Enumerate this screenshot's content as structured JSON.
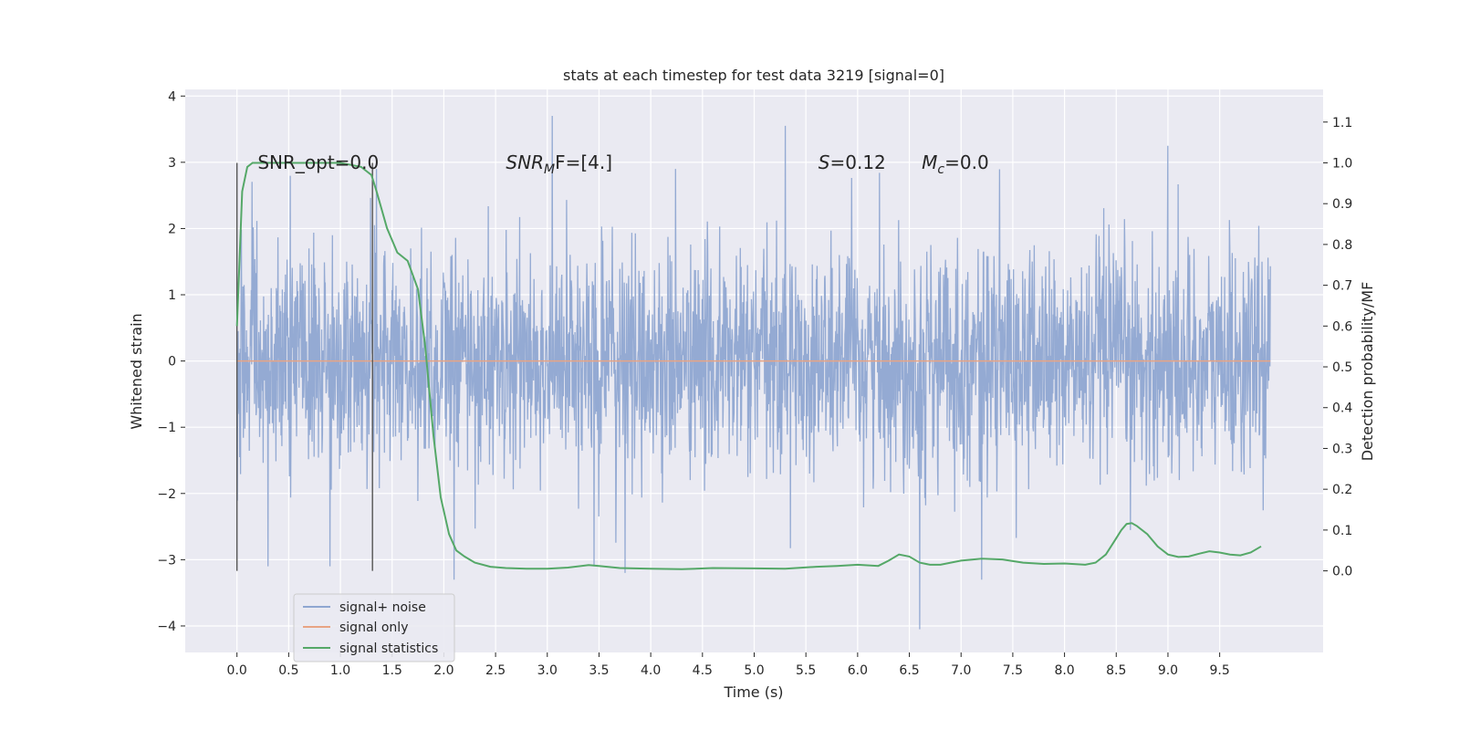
{
  "chart_data": {
    "type": "line",
    "title": "stats at each timestep for test data 3219 [signal=0]",
    "xlabel": "Time (s)",
    "ylabel": "Whitened strain",
    "y2label": "Detection probability/MF",
    "xlim": [
      -0.5,
      10.5
    ],
    "ylim": [
      -4.4,
      4.1
    ],
    "y2lim": [
      -0.2,
      1.18
    ],
    "x_ticks": [
      0.0,
      0.5,
      1.0,
      1.5,
      2.0,
      2.5,
      3.0,
      3.5,
      4.0,
      4.5,
      5.0,
      5.5,
      6.0,
      6.5,
      7.0,
      7.5,
      8.0,
      8.5,
      9.0,
      9.5
    ],
    "x_tick_labels": [
      "0.0",
      "0.5",
      "1.0",
      "1.5",
      "2.0",
      "2.5",
      "3.0",
      "3.5",
      "4.0",
      "4.5",
      "5.0",
      "5.5",
      "6.0",
      "6.5",
      "7.0",
      "7.5",
      "8.0",
      "8.5",
      "9.0",
      "9.5"
    ],
    "y_ticks": [
      -4,
      -3,
      -2,
      -1,
      0,
      1,
      2,
      3,
      4
    ],
    "y_tick_labels": [
      "−4",
      "−3",
      "−2",
      "−1",
      "0",
      "1",
      "2",
      "3",
      "4"
    ],
    "y2_ticks": [
      0.0,
      0.1,
      0.2,
      0.3,
      0.4,
      0.5,
      0.6,
      0.7,
      0.8,
      0.9,
      1.0,
      1.1
    ],
    "y2_tick_labels": [
      "0.0",
      "0.1",
      "0.2",
      "0.3",
      "0.4",
      "0.5",
      "0.6",
      "0.7",
      "0.8",
      "0.9",
      "1.0",
      "1.1"
    ],
    "grid": true,
    "legend": "lower-left",
    "vertical_lines": [
      0.0,
      1.31
    ],
    "annotations": [
      {
        "text": "SNR_opt=0.0",
        "x": 0.2,
        "y": 3.0,
        "style": "normal"
      },
      {
        "base": "SNR",
        "sub": "M",
        "rest": "F=[4.]",
        "x": 2.6,
        "y": 3.0,
        "style": "italic-sub"
      },
      {
        "base": "S",
        "sub": "",
        "rest": "=0.12",
        "x": 5.62,
        "y": 3.0,
        "style": "italic-sub"
      },
      {
        "base": "M",
        "sub": "c",
        "rest": "=0.0",
        "x": 6.62,
        "y": 3.0,
        "style": "italic-sub"
      }
    ],
    "series": [
      {
        "name": "signal+ noise",
        "color": "#8fa6d1",
        "axis": "left",
        "kind": "noise",
        "x_range": [
          0.0,
          9.99
        ],
        "typical_envelope": [
          -2.0,
          2.0
        ],
        "peaks": [
          {
            "x": 0.3,
            "y": -3.1
          },
          {
            "x": 0.9,
            "y": -3.1
          },
          {
            "x": 1.35,
            "y": 2.9
          },
          {
            "x": 2.1,
            "y": -3.3
          },
          {
            "x": 3.05,
            "y": 3.7
          },
          {
            "x": 3.45,
            "y": -3.1
          },
          {
            "x": 3.75,
            "y": -3.2
          },
          {
            "x": 5.3,
            "y": 3.55
          },
          {
            "x": 6.6,
            "y": -4.05
          },
          {
            "x": 7.2,
            "y": -3.3
          },
          {
            "x": 9.0,
            "y": 3.25
          }
        ]
      },
      {
        "name": "signal only",
        "color": "#e8a484",
        "axis": "left",
        "x": [
          0.0,
          9.99
        ],
        "y": [
          0.0,
          0.0
        ]
      },
      {
        "name": "signal statistics",
        "color": "#55a868",
        "axis": "right",
        "x": [
          0.0,
          0.05,
          0.1,
          0.15,
          0.25,
          0.4,
          0.6,
          0.8,
          1.0,
          1.1,
          1.2,
          1.3,
          1.35,
          1.45,
          1.55,
          1.65,
          1.75,
          1.82,
          1.9,
          1.97,
          2.05,
          2.12,
          2.2,
          2.3,
          2.45,
          2.6,
          2.8,
          3.0,
          3.2,
          3.4,
          3.5,
          3.7,
          4.0,
          4.3,
          4.6,
          5.0,
          5.3,
          5.6,
          5.8,
          6.0,
          6.2,
          6.3,
          6.4,
          6.5,
          6.6,
          6.7,
          6.8,
          7.0,
          7.2,
          7.4,
          7.6,
          7.8,
          8.0,
          8.2,
          8.3,
          8.4,
          8.5,
          8.55,
          8.6,
          8.65,
          8.7,
          8.8,
          8.9,
          9.0,
          9.1,
          9.2,
          9.3,
          9.4,
          9.5,
          9.6,
          9.7,
          9.8,
          9.9
        ],
        "y": [
          0.6,
          0.93,
          0.99,
          1.0,
          1.0,
          1.0,
          1.0,
          1.0,
          1.0,
          0.995,
          0.99,
          0.97,
          0.93,
          0.84,
          0.78,
          0.76,
          0.69,
          0.55,
          0.33,
          0.18,
          0.09,
          0.05,
          0.035,
          0.02,
          0.01,
          0.007,
          0.005,
          0.005,
          0.008,
          0.014,
          0.012,
          0.007,
          0.005,
          0.004,
          0.007,
          0.006,
          0.005,
          0.01,
          0.012,
          0.015,
          0.012,
          0.025,
          0.04,
          0.035,
          0.02,
          0.015,
          0.015,
          0.025,
          0.03,
          0.028,
          0.02,
          0.017,
          0.018,
          0.015,
          0.02,
          0.04,
          0.08,
          0.1,
          0.115,
          0.117,
          0.11,
          0.09,
          0.06,
          0.04,
          0.034,
          0.035,
          0.042,
          0.048,
          0.045,
          0.04,
          0.038,
          0.045,
          0.06
        ]
      }
    ]
  }
}
